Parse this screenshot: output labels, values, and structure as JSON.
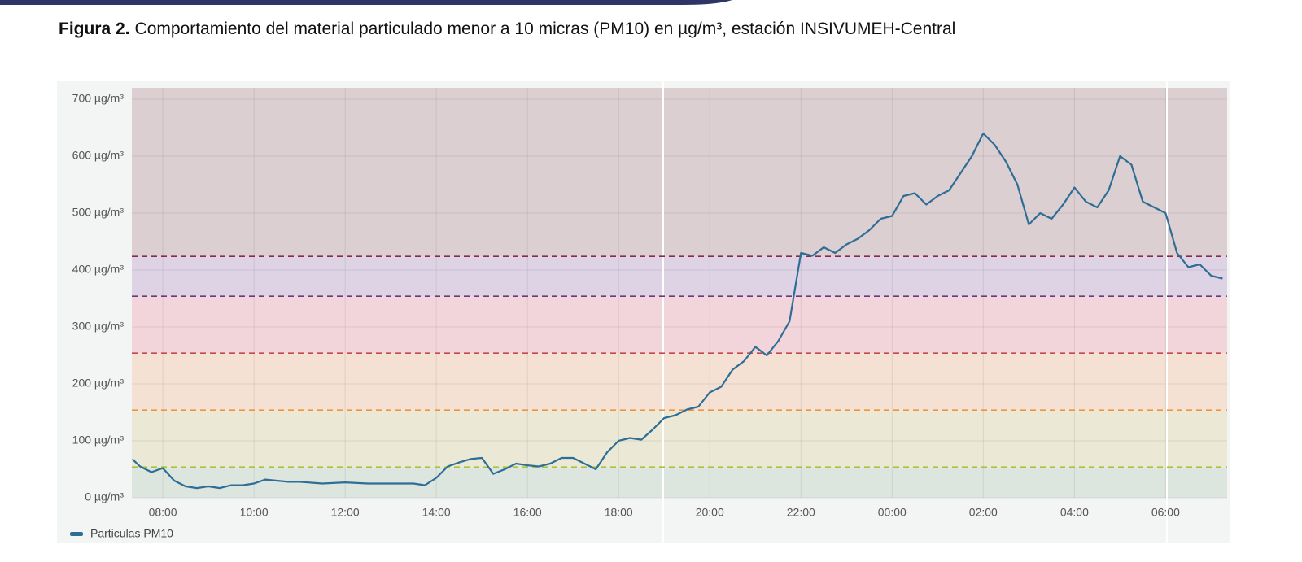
{
  "chart_data": {
    "type": "line",
    "title_prefix": "Figura 2.",
    "title": "Comportamiento del material particulado menor a 10 micras (PM10) en µg/m³, estación INSIVUMEH-Central",
    "x": [
      7.33,
      7.5,
      7.75,
      8,
      8.25,
      8.5,
      8.75,
      9,
      9.25,
      9.5,
      9.75,
      10,
      10.25,
      10.5,
      10.75,
      11,
      11.5,
      12,
      12.5,
      13,
      13.5,
      13.75,
      14,
      14.25,
      14.5,
      14.75,
      15,
      15.25,
      15.5,
      15.75,
      16,
      16.25,
      16.5,
      16.75,
      17,
      17.25,
      17.5,
      17.75,
      18,
      18.25,
      18.5,
      18.75,
      19,
      19.25,
      19.5,
      19.75,
      20,
      20.25,
      20.5,
      20.75,
      21,
      21.25,
      21.5,
      21.75,
      22,
      22.25,
      22.5,
      22.75,
      23,
      23.25,
      23.5,
      23.75,
      24,
      24.25,
      24.5,
      24.75,
      25,
      25.25,
      25.5,
      25.75,
      26,
      26.25,
      26.5,
      26.75,
      27,
      27.25,
      27.5,
      27.75,
      28,
      28.25,
      28.5,
      28.75,
      29,
      29.25,
      29.5,
      29.75,
      30,
      30.25,
      30.5,
      30.75,
      31,
      31.25
    ],
    "series": [
      {
        "name": "Particulas PM10",
        "color": "#2e6e96",
        "values": [
          68,
          55,
          45,
          52,
          30,
          20,
          17,
          20,
          17,
          22,
          22,
          25,
          32,
          30,
          28,
          28,
          25,
          27,
          25,
          25,
          25,
          22,
          35,
          55,
          62,
          68,
          70,
          42,
          50,
          60,
          57,
          55,
          60,
          70,
          70,
          60,
          50,
          80,
          100,
          105,
          102,
          120,
          140,
          145,
          155,
          160,
          185,
          195,
          225,
          240,
          265,
          250,
          275,
          310,
          430,
          425,
          440,
          430,
          445,
          455,
          470,
          490,
          495,
          530,
          535,
          515,
          530,
          540,
          570,
          600,
          640,
          620,
          590,
          550,
          480,
          500,
          490,
          515,
          545,
          520,
          510,
          540,
          600,
          585,
          520,
          510,
          500,
          430,
          405,
          410,
          390,
          385
        ]
      }
    ],
    "xlim": [
      7.32,
      31.35
    ],
    "xticks": [
      {
        "value": 8,
        "label": "08:00"
      },
      {
        "value": 10,
        "label": "10:00"
      },
      {
        "value": 12,
        "label": "12:00"
      },
      {
        "value": 14,
        "label": "14:00"
      },
      {
        "value": 16,
        "label": "16:00"
      },
      {
        "value": 18,
        "label": "18:00"
      },
      {
        "value": 20,
        "label": "20:00"
      },
      {
        "value": 22,
        "label": "22:00"
      },
      {
        "value": 24,
        "label": "00:00"
      },
      {
        "value": 26,
        "label": "02:00"
      },
      {
        "value": 28,
        "label": "04:00"
      },
      {
        "value": 30,
        "label": "06:00"
      }
    ],
    "ylim": [
      0,
      720
    ],
    "yticks": [
      {
        "value": 0,
        "label": "0 µg/m³"
      },
      {
        "value": 100,
        "label": "100 µg/m³"
      },
      {
        "value": 200,
        "label": "200 µg/m³"
      },
      {
        "value": 300,
        "label": "300 µg/m³"
      },
      {
        "value": 400,
        "label": "400 µg/m³"
      },
      {
        "value": 500,
        "label": "500 µg/m³"
      },
      {
        "value": 600,
        "label": "600 µg/m³"
      },
      {
        "value": 700,
        "label": "700 µg/m³"
      }
    ],
    "grid": true,
    "bands": [
      {
        "from": 0,
        "to": 54,
        "fill": "#dce6df",
        "line": "#a8c43c"
      },
      {
        "from": 54,
        "to": 154,
        "fill": "#ebe8d6",
        "line": "#f0943c"
      },
      {
        "from": 154,
        "to": 254,
        "fill": "#f4e1d4",
        "line": "#c44a4a"
      },
      {
        "from": 254,
        "to": 354,
        "fill": "#f2d5da",
        "line": "#6a3a7a"
      },
      {
        "from": 354,
        "to": 424,
        "fill": "#ddd3e4",
        "line": "#8a2a4a"
      },
      {
        "from": 424,
        "to": 720,
        "fill": "#dccfd1"
      }
    ]
  }
}
